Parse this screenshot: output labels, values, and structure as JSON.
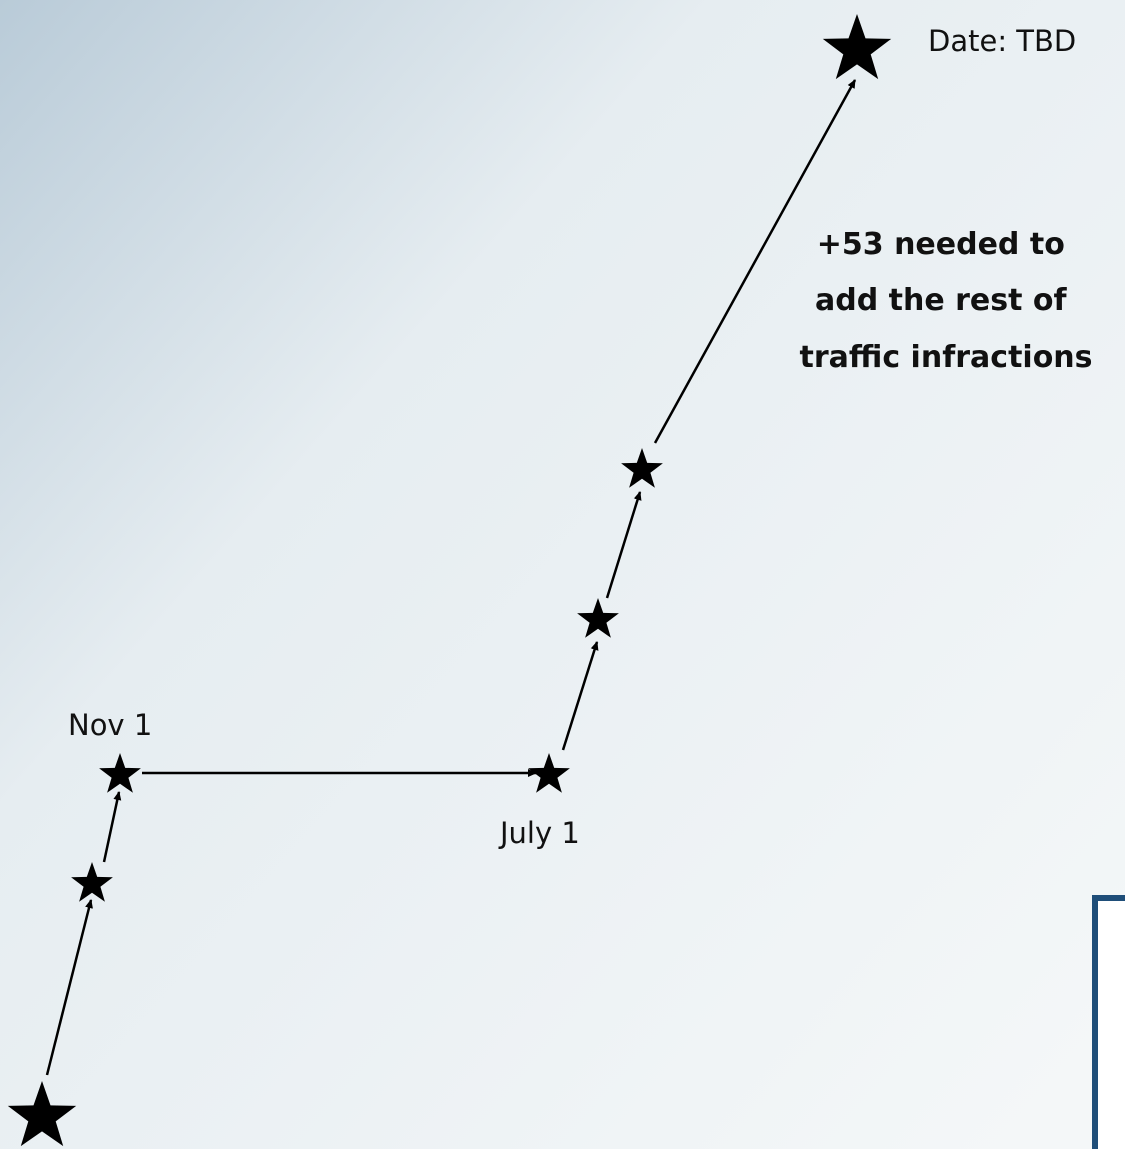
{
  "labels": {
    "end": "Date: TBD",
    "nov": "Nov 1",
    "july": "July 1"
  },
  "annotation": {
    "lines": [
      "+53 needed to",
      "add the rest of",
      "traffic infractions"
    ]
  }
}
